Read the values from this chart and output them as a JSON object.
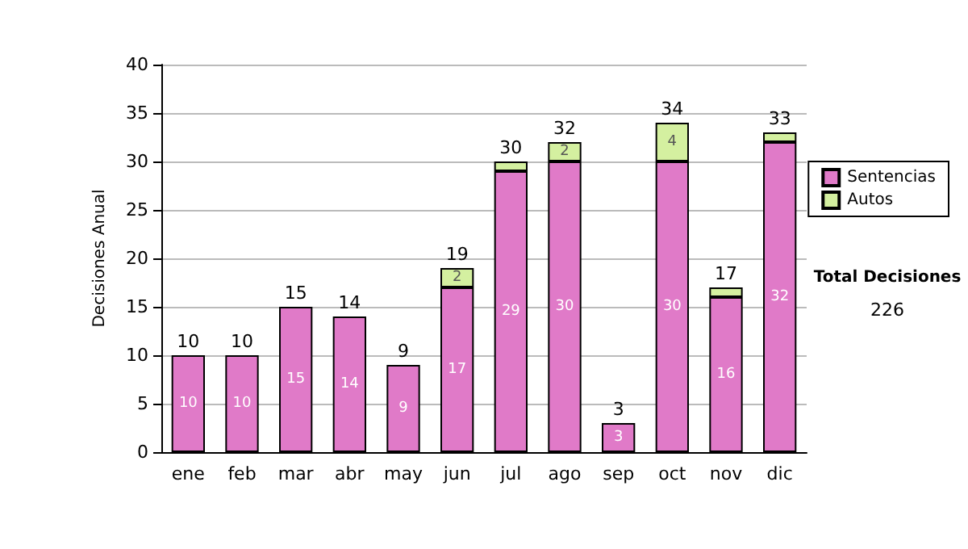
{
  "chart_data": {
    "type": "bar",
    "stacked": true,
    "ylabel": "Decisiones Anual",
    "categories": [
      "ene",
      "feb",
      "mar",
      "abr",
      "may",
      "jun",
      "jul",
      "ago",
      "sep",
      "oct",
      "nov",
      "dic"
    ],
    "series": [
      {
        "name": "Sentencias",
        "color": "#e07ac8",
        "values": [
          10,
          10,
          15,
          14,
          9,
          17,
          29,
          30,
          3,
          30,
          16,
          32
        ],
        "value_labels": [
          "10",
          "10",
          "15",
          "14",
          "9",
          "17",
          "29",
          "30",
          "3",
          "30",
          "16",
          "32"
        ]
      },
      {
        "name": "Autos",
        "color": "#d4f0a0",
        "values": [
          null,
          null,
          null,
          null,
          null,
          2,
          1,
          2,
          null,
          4,
          1,
          1
        ],
        "value_labels": [
          null,
          null,
          null,
          null,
          null,
          "2",
          null,
          "2",
          null,
          "4",
          null,
          null
        ]
      }
    ],
    "totals": [
      "10",
      "10",
      "15",
      "14",
      "9",
      "19",
      "30",
      "32",
      "3",
      "34",
      "17",
      "33"
    ],
    "ylim": [
      0,
      40
    ],
    "yticks": [
      0,
      5,
      10,
      15,
      20,
      25,
      30,
      35,
      40
    ],
    "grid": "y",
    "legend": "right",
    "annotations": [
      "Total Decisiones",
      "226"
    ]
  }
}
